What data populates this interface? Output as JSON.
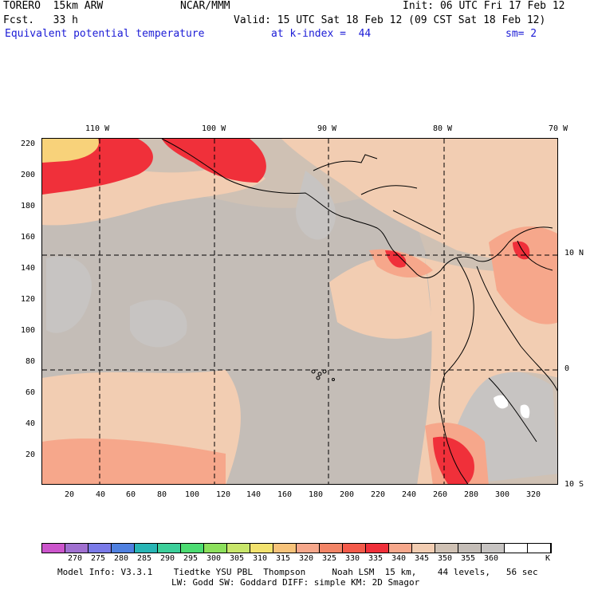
{
  "header": {
    "model": "TORERO  15km ARW",
    "org": "NCAR/MMM",
    "init": "Init: 06 UTC Fri 17 Feb 12",
    "fcst": "Fcst.   33 h",
    "valid": "Valid: 15 UTC Sat 18 Feb 12 (09 CST Sat 18 Feb 12)",
    "field": "Equivalent potential temperature",
    "level": "at k-index =  44",
    "smooth": "sm= 2"
  },
  "map": {
    "lon_labels": [
      "110 W",
      "100 W",
      "90 W",
      "80 W",
      "70 W"
    ],
    "lat_labels": [
      "10 N",
      "0",
      "10 S"
    ],
    "y_ticks": [
      "220",
      "200",
      "180",
      "160",
      "140",
      "120",
      "100",
      "80",
      "60",
      "40",
      "20"
    ],
    "x_ticks": [
      "20",
      "40",
      "60",
      "80",
      "100",
      "120",
      "140",
      "160",
      "180",
      "200",
      "220",
      "240",
      "260",
      "280",
      "300",
      "320"
    ],
    "colors": {
      "cool_ocean": "#cfc1b4",
      "mid_ocean": "#c4bdb7",
      "grey_patch": "#c7c4c2",
      "warm": "#f2cdb2",
      "salmon": "#f6a78b",
      "red": "#f45a4a",
      "hot": "#f0303a",
      "yellow": "#f8d27a",
      "white": "#ffffff"
    }
  },
  "colorbar": {
    "colors": [
      "#cc55cc",
      "#a070d0",
      "#7a7ae8",
      "#4f80e0",
      "#28b5b5",
      "#3ccf9a",
      "#4cdc72",
      "#8ce05c",
      "#c8e66a",
      "#f2e26e",
      "#f7c37a",
      "#f6a78b",
      "#f28466",
      "#f45a4a",
      "#f0303a",
      "#f6a78b",
      "#f2cdb2",
      "#cfc1b4",
      "#c4bdb7",
      "#c7c4c2",
      "#ffffff",
      "#ffffff"
    ],
    "labels": [
      "270",
      "275",
      "280",
      "285",
      "290",
      "295",
      "300",
      "305",
      "310",
      "315",
      "320",
      "325",
      "330",
      "335",
      "340",
      "345",
      "350",
      "355",
      "360",
      "K"
    ]
  },
  "footer": {
    "line1": "Model Info: V3.3.1    Tiedtke YSU PBL  Thompson     Noah LSM  15 km,    44 levels,   56 sec",
    "line2": "LW: Godd SW: Goddard DIFF: simple KM: 2D Smagor"
  }
}
